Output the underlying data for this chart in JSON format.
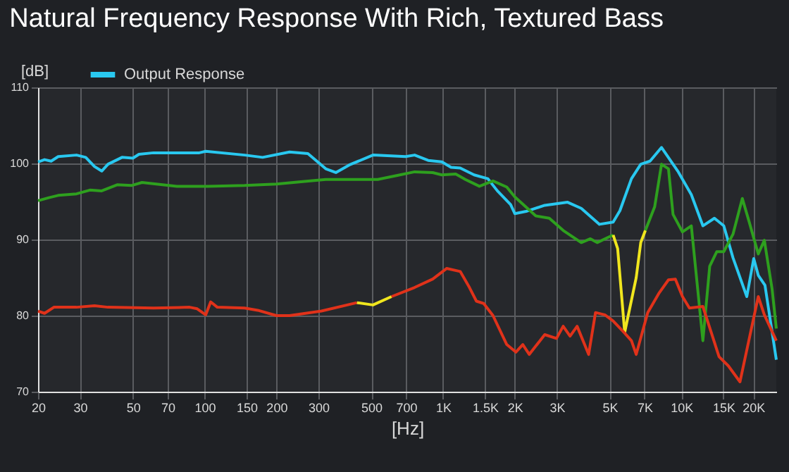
{
  "chart_data": {
    "type": "line",
    "title": "Natural Frequency Response With Rich, Textured Bass",
    "xlabel": "[Hz]",
    "ylabel": "[dB]",
    "log": "x",
    "grid": true,
    "legend": "top left",
    "line_style": "solid",
    "marker": "none",
    "xlim": [
      20,
      25000
    ],
    "ylim": [
      70,
      110
    ],
    "xticks": [
      20,
      30,
      50,
      70,
      100,
      150,
      200,
      300,
      500,
      700,
      {
        "value": 1000,
        "label": "1K"
      },
      {
        "value": 1500,
        "label": "1.5K"
      },
      {
        "value": 2000,
        "label": "2K"
      },
      {
        "value": 3000,
        "label": "3K"
      },
      {
        "value": 5000,
        "label": "5K"
      },
      {
        "value": 7000,
        "label": "7K"
      },
      {
        "value": 10000,
        "label": "10K"
      },
      {
        "value": 15000,
        "label": "15K"
      },
      {
        "value": 20000,
        "label": "20K"
      }
    ],
    "yticks": [
      70,
      80,
      90,
      100,
      110
    ],
    "series": [
      {
        "name": "Output Response",
        "color": "#29c8f0",
        "x": [
          20,
          21.3,
          22.7,
          24.3,
          29,
          31.7,
          34.5,
          37,
          39.3,
          45,
          50,
          53,
          61,
          95,
          101,
          147,
          175,
          227,
          271,
          322,
          355,
          404,
          508,
          696,
          760,
          866,
          988,
          1080,
          1180,
          1350,
          1540,
          1690,
          1920,
          2000,
          2230,
          2670,
          3330,
          3800,
          4530,
          5170,
          5520,
          6170,
          6750,
          7380,
          8250,
          9650,
          11000,
          12300,
          13750,
          15050,
          16450,
          18800,
          20100,
          21000,
          22400,
          25000
        ],
        "values": [
          100.2,
          100.5,
          100.3,
          100.9,
          101.1,
          100.8,
          99.6,
          99.0,
          99.9,
          100.8,
          100.7,
          101.2,
          101.4,
          101.4,
          101.6,
          101.1,
          100.8,
          101.5,
          101.3,
          99.3,
          98.8,
          99.8,
          101.1,
          100.9,
          101.1,
          100.4,
          100.2,
          99.5,
          99.4,
          98.5,
          98.0,
          96.4,
          94.6,
          93.4,
          93.7,
          94.5,
          94.9,
          94.1,
          92.0,
          92.3,
          93.8,
          98.0,
          99.9,
          100.3,
          102.1,
          99.0,
          95.9,
          91.8,
          92.8,
          91.8,
          87.6,
          82.5,
          87.5,
          85.3,
          84.0,
          74.2
        ]
      },
      {
        "color": "#2ea01e",
        "x": [
          20,
          22.2,
          24.3,
          29,
          33,
          37,
          43.1,
          49.3,
          54.6,
          76.4,
          103.5,
          147,
          200,
          322,
          532,
          638,
          760,
          905,
          988,
          1130,
          1240,
          1420,
          1620,
          1850,
          2000,
          2450,
          2790,
          3190,
          3800,
          4150,
          4430,
          5170
        ],
        "values": [
          95.1,
          95.5,
          95.8,
          96.0,
          96.5,
          96.4,
          97.2,
          97.1,
          97.5,
          97.0,
          97.0,
          97.1,
          97.3,
          97.9,
          97.9,
          98.4,
          98.9,
          98.8,
          98.5,
          98.6,
          97.9,
          97.0,
          97.7,
          96.9,
          95.6,
          93.1,
          92.8,
          91.2,
          89.6,
          90.1,
          89.6,
          90.6
        ]
      },
      {
        "color": "#f0e61e",
        "x": [
          5170,
          5400,
          5780,
          6460,
          6750,
          7060
        ],
        "values": [
          90.6,
          88.8,
          77.8,
          85.0,
          89.6,
          91.2
        ]
      },
      {
        "color": "#2ea01e",
        "x": [
          7060,
          7720,
          8250,
          8820,
          9220,
          10100,
          11000,
          12300,
          13140,
          14060,
          15050,
          16450,
          18000,
          19240,
          21000,
          22270,
          24000,
          25000
        ],
        "values": [
          91.2,
          94.3,
          99.9,
          99.3,
          93.3,
          91.0,
          91.8,
          76.7,
          86.5,
          88.4,
          88.4,
          90.7,
          95.4,
          92.3,
          88.1,
          89.9,
          83.5,
          78.3
        ]
      },
      {
        "color": "#e0321a",
        "x": [
          20,
          21.3,
          23.3,
          29,
          34.5,
          39.3,
          61,
          86.5,
          93,
          101,
          106,
          113,
          147,
          167,
          200,
          227,
          309,
          435
        ],
        "values": [
          80.6,
          80.3,
          81.1,
          81.1,
          81.3,
          81.1,
          81.0,
          81.1,
          80.9,
          80.1,
          81.8,
          81.1,
          81.0,
          80.7,
          80.0,
          80.0,
          80.6,
          81.7
        ]
      },
      {
        "color": "#f0e61e",
        "x": [
          435,
          508,
          608
        ],
        "values": [
          81.7,
          81.4,
          82.5
        ]
      },
      {
        "color": "#e0321a",
        "x": [
          608,
          760,
          905,
          1035,
          1180,
          1290,
          1380,
          1480,
          1620,
          1850,
          2020,
          2160,
          2300,
          2670,
          2990,
          3190,
          3410,
          3650,
          4080,
          4360,
          4770,
          5170,
          5780,
          6170,
          6460,
          7220,
          8070,
          8820,
          9430,
          10100,
          10800,
          12300,
          14380,
          15720,
          17600,
          21000,
          22270,
          25000
        ],
        "values": [
          82.5,
          83.7,
          84.8,
          86.2,
          85.8,
          83.7,
          81.9,
          81.6,
          80.0,
          76.2,
          75.2,
          76.2,
          74.9,
          77.5,
          77.0,
          78.6,
          77.3,
          78.6,
          74.9,
          80.4,
          80.1,
          79.3,
          77.7,
          76.7,
          74.9,
          80.4,
          83.0,
          84.7,
          84.8,
          82.5,
          81.0,
          81.2,
          74.6,
          73.4,
          71.3,
          82.5,
          80.1,
          76.7
        ]
      }
    ]
  }
}
